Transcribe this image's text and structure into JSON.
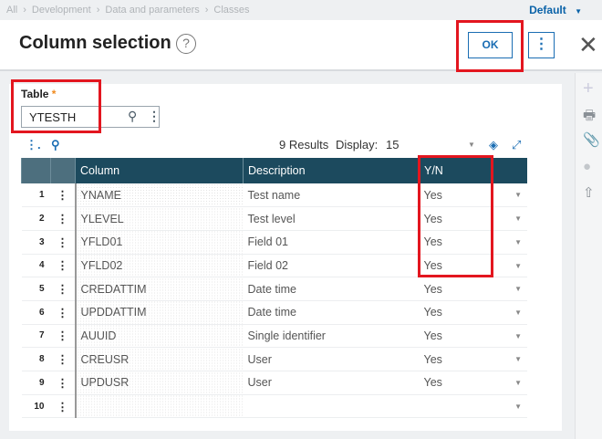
{
  "breadcrumb": [
    "All",
    "Development",
    "Data and parameters",
    "Classes"
  ],
  "profile": "Default",
  "title": "Column selection",
  "buttons": {
    "ok": "OK"
  },
  "field": {
    "label": "Table",
    "required": "*",
    "value": "YTESTH"
  },
  "results": "9 Results",
  "display_label": "Display:",
  "display_value": "15",
  "columns": [
    "Column",
    "Description",
    "Y/N"
  ],
  "rows": [
    {
      "n": "1",
      "col": "YNAME",
      "desc": "Test name",
      "yn": "Yes"
    },
    {
      "n": "2",
      "col": "YLEVEL",
      "desc": "Test level",
      "yn": "Yes"
    },
    {
      "n": "3",
      "col": "YFLD01",
      "desc": "Field 01",
      "yn": "Yes"
    },
    {
      "n": "4",
      "col": "YFLD02",
      "desc": "Field 02",
      "yn": "Yes"
    },
    {
      "n": "5",
      "col": "CREDATTIM",
      "desc": "Date time",
      "yn": "Yes"
    },
    {
      "n": "6",
      "col": "UPDDATTIM",
      "desc": "Date time",
      "yn": "Yes"
    },
    {
      "n": "7",
      "col": "AUUID",
      "desc": "Single identifier",
      "yn": "Yes"
    },
    {
      "n": "8",
      "col": "CREUSR",
      "desc": "User",
      "yn": "Yes"
    },
    {
      "n": "9",
      "col": "UPDUSR",
      "desc": "User",
      "yn": "Yes"
    },
    {
      "n": "10",
      "col": "",
      "desc": "",
      "yn": ""
    }
  ],
  "colors": {
    "accent": "#1a6db3",
    "header": "#1c4a5e",
    "highlight": "#e3161f"
  }
}
